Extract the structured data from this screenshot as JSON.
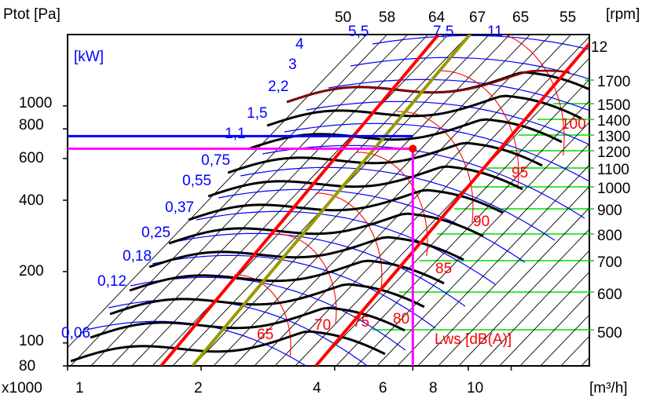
{
  "chart_data": {
    "type": "line",
    "title": "",
    "y_axis": {
      "label": "Ptot [Pa]",
      "scale": "log",
      "range": [
        80,
        2000
      ],
      "ticks": [
        {
          "label": "80",
          "value": 80
        },
        {
          "label": "100",
          "value": 100
        },
        {
          "label": "200",
          "value": 200
        },
        {
          "label": "400",
          "value": 400
        },
        {
          "label": "600",
          "value": 600
        },
        {
          "label": "800",
          "value": 800
        },
        {
          "label": "1000",
          "value": 1000
        }
      ]
    },
    "x_axis": {
      "label": "[m³/h]",
      "multiplier_label": "x1000",
      "scale": "log",
      "range": [
        1,
        15
      ],
      "ticks": [
        {
          "label": "1",
          "value": 1
        },
        {
          "label": "2",
          "value": 2
        },
        {
          "label": "4",
          "value": 4
        },
        {
          "label": "6",
          "value": 6
        },
        {
          "label": "8",
          "value": 8
        },
        {
          "label": "10",
          "value": 10
        }
      ]
    },
    "rpm_axis_label": "[rpm]",
    "rpm_ticks": [
      "1700",
      "1500",
      "1400",
      "1300",
      "1200",
      "1100",
      "1000",
      "900",
      "800",
      "700",
      "600",
      "500"
    ],
    "power_label": "[kW]",
    "power_values": [
      "4",
      "3",
      "2,2",
      "1,5",
      "1,1",
      "0,75",
      "0,55",
      "0,37",
      "0,25",
      "0,18",
      "0,12",
      "0,06"
    ],
    "efficiency_top_labels": [
      "50",
      "58",
      "64",
      "67",
      "65",
      "55",
      "5,5",
      "7,5",
      "11",
      "12"
    ],
    "sound_label": "Lws [dB(A)]",
    "sound_values": [
      "65",
      "70",
      "75",
      "80",
      "85",
      "90",
      "95",
      "100"
    ],
    "operating_point": {
      "x": 6,
      "y": 660
    },
    "colors": {
      "power": "#0000ff",
      "sound": "#ff0000",
      "fan_curves": "#000000",
      "rpm_lines": "#00dd00",
      "system_curves": "#ff0000",
      "optimum_curve": "#999900",
      "crosshair_x": "#ff00ff",
      "crosshair_y": "#0000ff"
    },
    "grid": true,
    "legend": "none"
  }
}
